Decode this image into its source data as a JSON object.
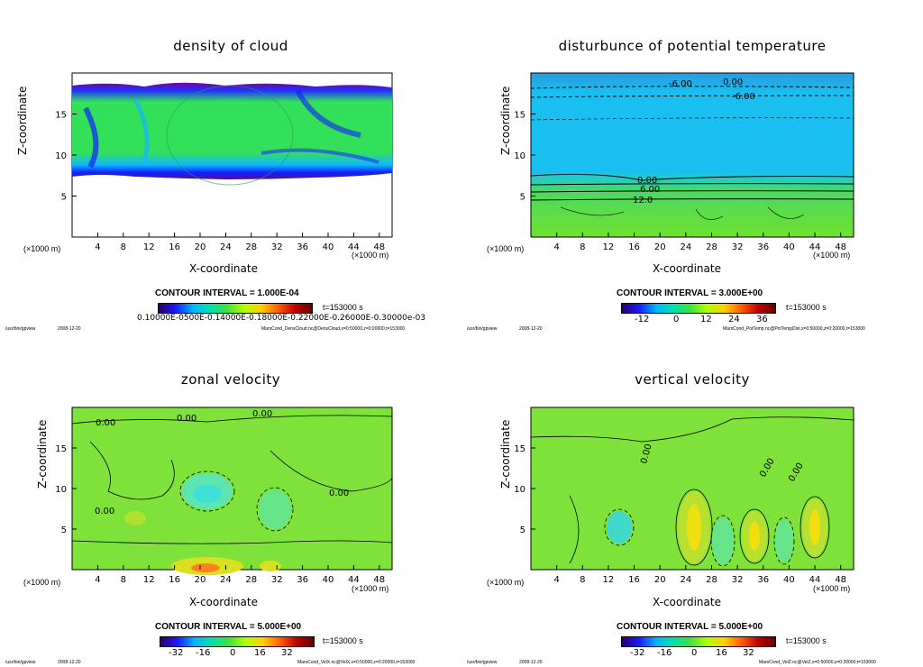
{
  "meta": {
    "program": "/usr/bin/gpview",
    "date": "2008-12-20"
  },
  "common": {
    "xlabel": "X-coordinate",
    "ylabel": "Z-coordinate",
    "xunit": "(×1000 m)",
    "yunit": "(×1000 m)",
    "time_label": "t=153000 s"
  },
  "colors": {
    "cloud_base": "#33e05a",
    "theta_upper": "#18bff0",
    "theta_lower": "#6ee22e",
    "vel_bg": "#7ee23a"
  },
  "chart_data": [
    {
      "type": "heatmap",
      "title": "density of cloud",
      "xlabel": "X-coordinate",
      "ylabel": "Z-coordinate",
      "xticks": [
        "4",
        "8",
        "12",
        "16",
        "20",
        "24",
        "28",
        "32",
        "36",
        "40",
        "44",
        "48"
      ],
      "yticks": [
        "5",
        "10",
        "15"
      ],
      "xlim": [
        0,
        50
      ],
      "ylim": [
        0,
        20
      ],
      "contour_interval": "CONTOUR INTERVAL = 1.000E-04",
      "colorbar_labels": "0.10000E-0500E-0.14000E-0.18000E-0.22000E-0.26000E-0.30000e-03",
      "footer": "MarsCond_DensCloud.nc@DensCloud,x=0:50000,z=0:20000,t=153000"
    },
    {
      "type": "heatmap",
      "title": "disturbunce of potential temperature",
      "xlabel": "X-coordinate",
      "ylabel": "Z-coordinate",
      "xticks": [
        "4",
        "8",
        "12",
        "16",
        "20",
        "24",
        "28",
        "32",
        "36",
        "40",
        "44",
        "48"
      ],
      "yticks": [
        "5",
        "10",
        "15"
      ],
      "xlim": [
        0,
        50
      ],
      "ylim": [
        0,
        20
      ],
      "contour_labels": [
        "-6.00",
        "0.00",
        "-6.00",
        "0.00",
        "6.00",
        "12.0"
      ],
      "contour_interval": "CONTOUR INTERVAL = 3.000E+00",
      "colorbar_ticks": [
        "-12",
        "0",
        "12",
        "24",
        "36"
      ],
      "footer": "MarsCond_PotTemp.nc@PotTempDist,x=0:50000,z=0:20000,t=153000"
    },
    {
      "type": "heatmap",
      "title": "zonal velocity",
      "xlabel": "X-coordinate",
      "ylabel": "Z-coordinate",
      "xticks": [
        "4",
        "8",
        "12",
        "16",
        "20",
        "24",
        "28",
        "32",
        "36",
        "40",
        "44",
        "48"
      ],
      "yticks": [
        "5",
        "10",
        "15"
      ],
      "xlim": [
        0,
        50
      ],
      "ylim": [
        0,
        20
      ],
      "contour_labels": [
        "0.00",
        "0.00",
        "0.00",
        "0.00",
        "0.00"
      ],
      "contour_interval": "CONTOUR INTERVAL = 5.000E+00",
      "colorbar_ticks": [
        "-32",
        "-16",
        "0",
        "16",
        "32"
      ],
      "footer": "MarsCond_VelX.nc@VelX,x=0:50000,z=0:20000,t=153000"
    },
    {
      "type": "heatmap",
      "title": "vertical velocity",
      "xlabel": "X-coordinate",
      "ylabel": "Z-coordinate",
      "xticks": [
        "4",
        "8",
        "12",
        "16",
        "20",
        "24",
        "28",
        "32",
        "36",
        "40",
        "44",
        "48"
      ],
      "yticks": [
        "5",
        "10",
        "15"
      ],
      "xlim": [
        0,
        50
      ],
      "ylim": [
        0,
        20
      ],
      "contour_labels": [
        "0.00",
        "0.00",
        "0.00"
      ],
      "contour_interval": "CONTOUR INTERVAL = 5.000E+00",
      "colorbar_ticks": [
        "-32",
        "-16",
        "0",
        "16",
        "32"
      ],
      "footer": "MarsCond_VelZ.nc@VelZ,x=0:50000,z=0:20000,t=153000"
    }
  ]
}
